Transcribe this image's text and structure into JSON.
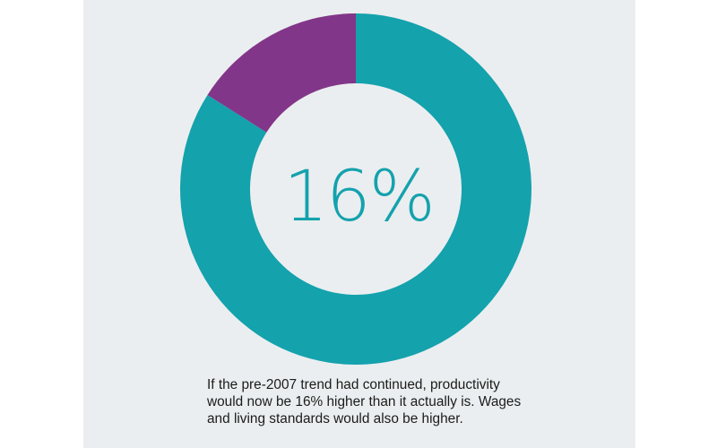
{
  "chart_data": {
    "type": "pie",
    "variant": "donut",
    "center_label": "16%",
    "slices": [
      {
        "value": 84,
        "color": "#14a2ad"
      },
      {
        "value": 16,
        "color": "#823689"
      }
    ]
  },
  "caption": "If the pre-2007 trend had continued, productivity would now be 16% higher than it actually is. Wages and living standards would also be higher.",
  "colors": {
    "background_panel": "#ebeef0",
    "teal": "#14a2ad",
    "purple": "#823689"
  }
}
